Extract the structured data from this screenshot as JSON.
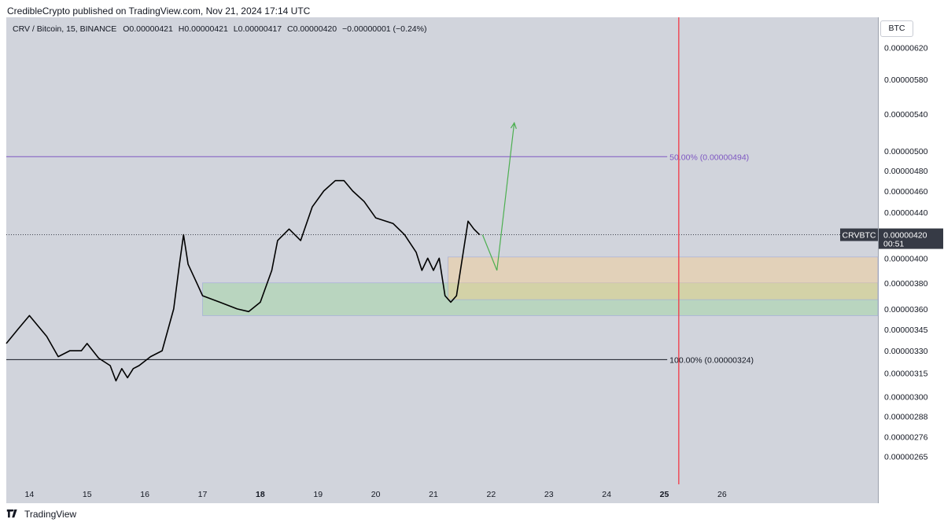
{
  "header": {
    "text": "CredibleCrypto published on TradingView.com, Nov 21, 2024 17:14 UTC"
  },
  "legend": {
    "symbol": "CRV / Bitcoin, 15, BINANCE",
    "o_label": "O",
    "o": "0.00000421",
    "h_label": "H",
    "h": "0.00000421",
    "l_label": "L",
    "l": "0.00000417",
    "c_label": "C",
    "c": "0.00000420",
    "change": "−0.00000001 (−0.24%)"
  },
  "currency_button": "BTC",
  "footer": {
    "brand": "TradingView"
  },
  "colors": {
    "background": "#d1d4dc",
    "candles": "#000000",
    "fib_50": "#7e57c2",
    "fib_100": "#131722",
    "vertical_marker": "#f23645",
    "arrow": "#4caf50",
    "demand_zone": "#a5d6a7",
    "target_zone": "#ffcc80"
  },
  "chart_data": {
    "type": "line",
    "symbol": "CRVBTC",
    "timeframe": "15",
    "x_ticks": [
      "14",
      "15",
      "16",
      "17",
      "18",
      "19",
      "20",
      "21",
      "22",
      "23",
      "24",
      "25",
      "26"
    ],
    "bold_ticks": [
      "18",
      "25"
    ],
    "x_range": [
      13.6,
      28.7
    ],
    "y_ticks": [
      "0.00000620",
      "0.00000580",
      "0.00000540",
      "0.00000500",
      "0.00000480",
      "0.00000460",
      "0.00000440",
      "0.00000400",
      "0.00000380",
      "0.00000360",
      "0.00000345",
      "0.00000330",
      "0.00000315",
      "0.00000300",
      "0.00000288",
      "0.00000276",
      "0.00000265"
    ],
    "ylim": [
      2.5e-06,
      6.6e-06
    ],
    "log_scale": true,
    "grid": false,
    "series": [
      {
        "x": [
          13.6,
          13.8,
          14.0,
          14.3,
          14.5,
          14.7,
          14.9,
          15.0,
          15.2,
          15.4,
          15.5,
          15.6,
          15.7,
          15.8,
          15.9,
          16.1,
          16.3,
          16.5,
          16.6,
          16.67,
          16.75,
          16.9,
          17.0,
          17.3,
          17.6,
          17.8,
          18.0,
          18.2,
          18.3,
          18.5,
          18.7,
          18.9,
          19.1,
          19.3,
          19.45,
          19.6,
          19.8,
          20.0,
          20.3,
          20.5,
          20.7,
          20.8,
          20.9,
          21.0,
          21.1,
          21.2,
          21.3,
          21.4,
          21.5,
          21.6,
          21.7,
          21.8
        ],
        "y": [
          3.35e-06,
          3.45e-06,
          3.55e-06,
          3.4e-06,
          3.26e-06,
          3.3e-06,
          3.3e-06,
          3.35e-06,
          3.25e-06,
          3.2e-06,
          3.1e-06,
          3.18e-06,
          3.12e-06,
          3.18e-06,
          3.2e-06,
          3.26e-06,
          3.3e-06,
          3.6e-06,
          3.95e-06,
          4.2e-06,
          3.95e-06,
          3.8e-06,
          3.7e-06,
          3.65e-06,
          3.6e-06,
          3.58e-06,
          3.65e-06,
          3.9e-06,
          4.15e-06,
          4.25e-06,
          4.15e-06,
          4.45e-06,
          4.6e-06,
          4.7e-06,
          4.7e-06,
          4.6e-06,
          4.5e-06,
          4.35e-06,
          4.3e-06,
          4.2e-06,
          4.05e-06,
          3.9e-06,
          4e-06,
          3.9e-06,
          4e-06,
          3.7e-06,
          3.65e-06,
          3.7e-06,
          4e-06,
          4.32e-06,
          4.25e-06,
          4.2e-06
        ]
      }
    ],
    "current_price": {
      "label": "CRVBTC",
      "value": "0.00000420",
      "countdown": "00:51",
      "price": 4.2e-06
    },
    "fib_levels": [
      {
        "label": "50.00% (0.00000494)",
        "price": 4.94e-06,
        "from": 13.6,
        "to": 25.05
      },
      {
        "label": "100.00% (0.00000324)",
        "price": 3.24e-06,
        "from": 13.6,
        "to": 25.05
      }
    ],
    "zones": [
      {
        "name": "demand",
        "x1": 17.0,
        "x2": 28.7,
        "y_low": 3.55e-06,
        "y_high": 3.8e-06
      },
      {
        "name": "target",
        "x1": 21.25,
        "x2": 28.7,
        "y_low": 3.67e-06,
        "y_high": 4.01e-06
      }
    ],
    "projection": [
      {
        "x": 21.85,
        "y": 4.2e-06
      },
      {
        "x": 22.1,
        "y": 3.9e-06
      },
      {
        "x": 22.4,
        "y": 5.3e-06
      }
    ],
    "vertical_marker_x": 25.25
  }
}
